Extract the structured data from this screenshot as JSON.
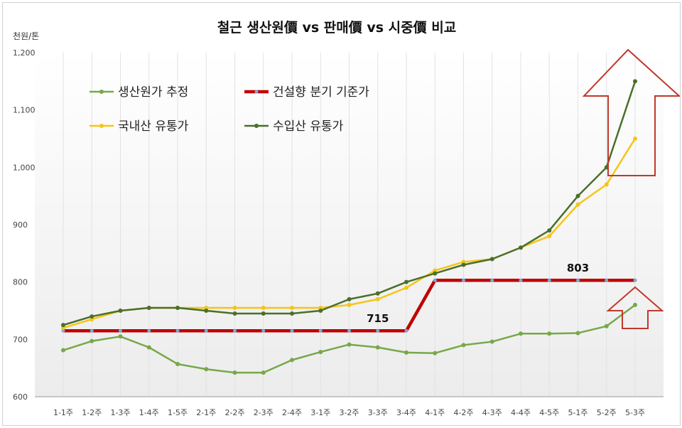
{
  "chart_data": {
    "type": "line",
    "title": "철근 생산원價 vs 판매價 vs 시중價 비교",
    "ylabel": "천원/톤",
    "xlabel": "",
    "ylim": [
      600,
      1200
    ],
    "yticks": [
      "600",
      "700",
      "800",
      "900",
      "1,000",
      "1,100",
      "1,200"
    ],
    "categories": [
      "1-1주",
      "1-2주",
      "1-3주",
      "1-4주",
      "1-5주",
      "2-1주",
      "2-2주",
      "2-3주",
      "2-4주",
      "3-1주",
      "3-2주",
      "3-3주",
      "3-4주",
      "4-1주",
      "4-2주",
      "4-3주",
      "4-4주",
      "4-5주",
      "5-1주",
      "5-2주",
      "5-3주"
    ],
    "series": [
      {
        "name": "생산원가 추정",
        "color": "#77a84a",
        "values": [
          681,
          697,
          705,
          686,
          657,
          648,
          642,
          642,
          664,
          678,
          691,
          686,
          677,
          676,
          690,
          696,
          710,
          710,
          711,
          723,
          760
        ]
      },
      {
        "name": "건설향 분기 기준가",
        "color": "#c00000",
        "values": [
          715,
          715,
          715,
          715,
          715,
          715,
          715,
          715,
          715,
          715,
          715,
          715,
          715,
          803,
          803,
          803,
          803,
          803,
          803,
          803,
          803
        ]
      },
      {
        "name": "국내산 유통가",
        "color": "#f5c518",
        "values": [
          720,
          735,
          750,
          755,
          755,
          755,
          755,
          755,
          755,
          755,
          760,
          770,
          790,
          820,
          835,
          840,
          860,
          880,
          935,
          970,
          1050
        ]
      },
      {
        "name": "수입산 유통가",
        "color": "#4a6f2a",
        "values": [
          725,
          740,
          750,
          755,
          755,
          750,
          745,
          745,
          745,
          750,
          770,
          780,
          800,
          815,
          830,
          840,
          860,
          890,
          950,
          1000,
          1150
        ]
      }
    ],
    "annotations": [
      {
        "text": "715",
        "x": "3-3주",
        "y": 715
      },
      {
        "text": "803",
        "x": "5-1주",
        "y": 803
      }
    ],
    "legend": "top-left",
    "grid": "vertical"
  }
}
